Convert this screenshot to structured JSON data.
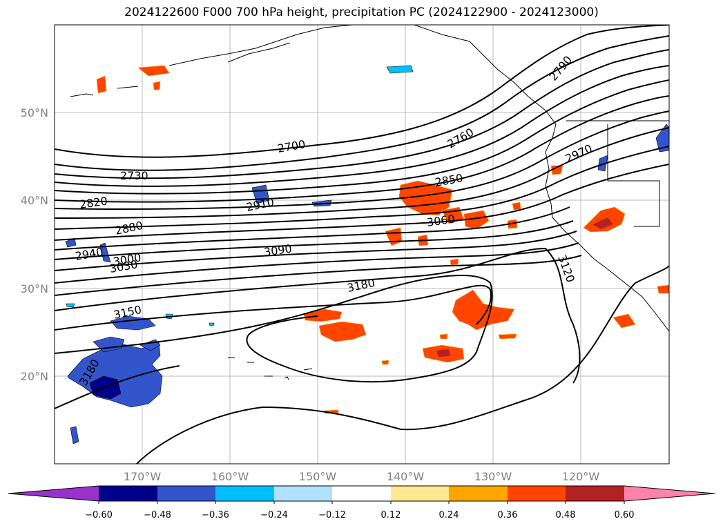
{
  "title": "2024122600 F000 700 hPa height, precipitation PC (2024122900 - 2024123000)",
  "lat_labels": [
    "50°N",
    "40°N",
    "30°N",
    "20°N"
  ],
  "lon_labels": [
    "170°W",
    "160°W",
    "150°W",
    "140°W",
    "130°W",
    "120°W"
  ],
  "colorbar": {
    "ticks": [
      "−0.60",
      "−0.48",
      "−0.36",
      "−0.24",
      "−0.12",
      "0.12",
      "0.24",
      "0.36",
      "0.48",
      "0.60"
    ],
    "colors": [
      "#9932cc",
      "#00008b",
      "#3355cc",
      "#00bfff",
      "#b0e2ff",
      "#ffffff",
      "#ffe88f",
      "#ffa500",
      "#ff4500",
      "#b22222",
      "#ff82ab"
    ]
  },
  "contour_labels": [
    "2700",
    "2730",
    "2760",
    "2790",
    "2820",
    "2850",
    "2880",
    "2910",
    "2940",
    "2970",
    "3000",
    "3030",
    "3060",
    "3090",
    "3120",
    "3150",
    "3180",
    "3180"
  ]
}
